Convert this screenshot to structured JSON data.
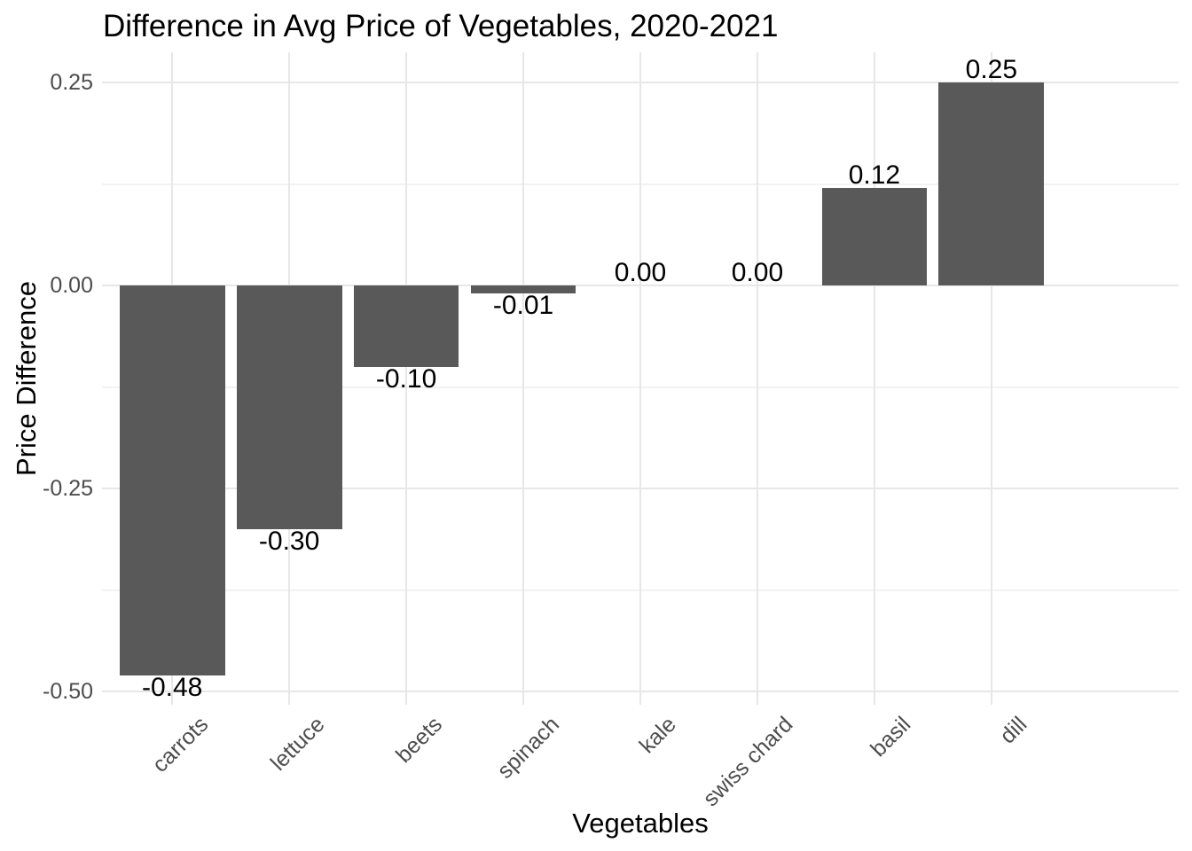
{
  "chart_data": {
    "type": "bar",
    "title": "Difference in Avg Price of Vegetables, 2020-2021",
    "xlabel": "Vegetables",
    "ylabel": "Price Difference",
    "categories": [
      "carrots",
      "lettuce",
      "beets",
      "spinach",
      "kale",
      "swiss chard",
      "basil",
      "dill"
    ],
    "values": [
      -0.48,
      -0.3,
      -0.1,
      -0.01,
      0.0,
      0.0,
      0.12,
      0.25
    ],
    "bar_labels": [
      "-0.48",
      "-0.30",
      "-0.10",
      "-0.01",
      "0.00",
      "0.00",
      "0.12",
      "0.25"
    ],
    "y_axis": {
      "tick_values": [
        0.25,
        0.0,
        -0.25,
        -0.5
      ],
      "tick_labels": [
        "0.25",
        "0.00",
        "-0.25",
        "-0.50"
      ],
      "minor_tick_values": [
        0.125,
        -0.125,
        -0.375
      ],
      "ylim": [
        -0.5165,
        0.2865
      ]
    },
    "legend": "none",
    "grid": true,
    "bar_width_fraction": 0.9,
    "colors": {
      "bar": "#595959",
      "grid_major": "#E7E7E7",
      "grid_minor": "#F2F2F2",
      "axis_text": "#4D4D4D",
      "text": "#000000",
      "background": "#FFFFFF"
    }
  }
}
